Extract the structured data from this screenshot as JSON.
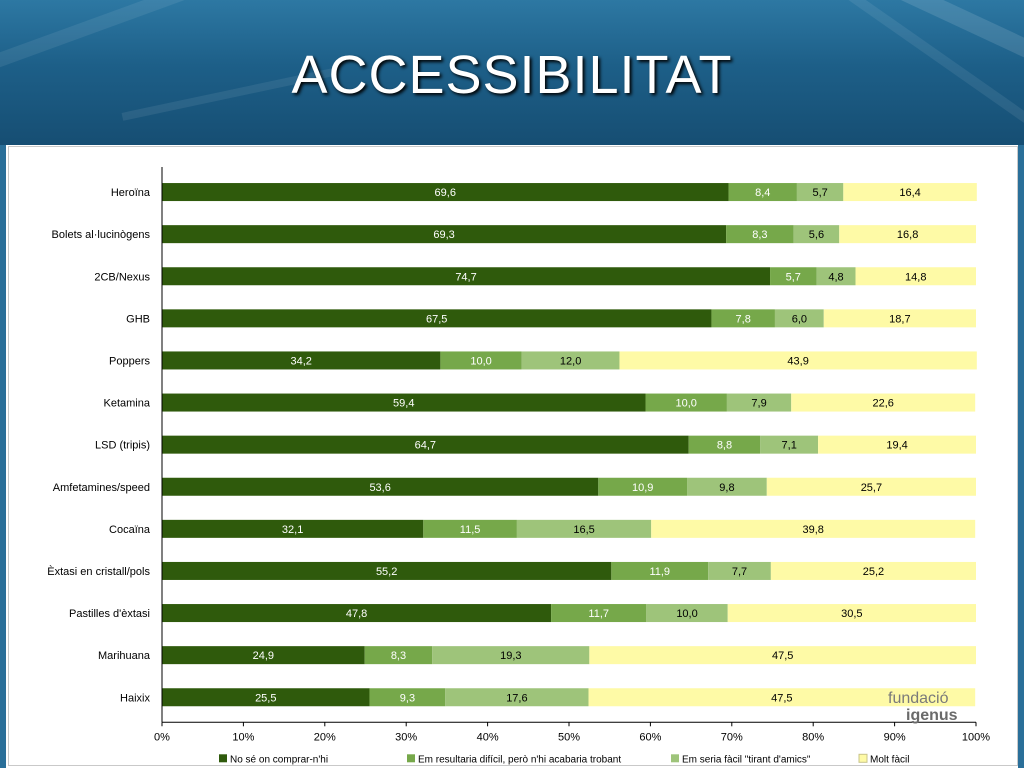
{
  "slide": {
    "title": "ACCESSIBILITAT"
  },
  "logo": {
    "line1": "fundació",
    "line2": "igenus"
  },
  "colors": {
    "banner": "#1d5f88",
    "series": [
      "#2f5a0c",
      "#76a84a",
      "#9ec47a",
      "#fefaa6"
    ]
  },
  "chart_data": {
    "type": "bar",
    "orientation": "horizontal",
    "stacked": true,
    "categories": [
      "Heroïna",
      "Bolets al·lucinògens",
      "2CB/Nexus",
      "GHB",
      "Poppers",
      "Ketamina",
      "LSD (tripis)",
      "Amfetamines/speed",
      "Cocaïna",
      "Èxtasi en cristall/pols",
      "Pastilles d'èxtasi",
      "Marihuana",
      "Haixix"
    ],
    "series": [
      {
        "name": "No sé on comprar-n'hi",
        "values": [
          69.6,
          69.3,
          74.7,
          67.5,
          34.2,
          59.4,
          64.7,
          53.6,
          32.1,
          55.2,
          47.8,
          24.9,
          25.5
        ]
      },
      {
        "name": "Em resultaria difícil, però n'hi acabaria trobant",
        "values": [
          8.4,
          8.3,
          5.7,
          7.8,
          10.0,
          10.0,
          8.8,
          10.9,
          11.5,
          11.9,
          11.7,
          8.3,
          9.3
        ]
      },
      {
        "name": "Em seria fàcil \"tirant d'amics\"",
        "values": [
          5.7,
          5.6,
          4.8,
          6.0,
          12.0,
          7.9,
          7.1,
          9.8,
          16.5,
          7.7,
          10.0,
          19.3,
          17.6
        ]
      },
      {
        "name": "Molt fàcil",
        "values": [
          16.4,
          16.8,
          14.8,
          18.7,
          43.9,
          22.6,
          19.4,
          25.7,
          39.8,
          25.2,
          30.5,
          47.5,
          47.5
        ]
      }
    ],
    "value_labels": [
      [
        "69,6",
        "8,4",
        "5,7",
        "16,4"
      ],
      [
        "69,3",
        "8,3",
        "5,6",
        "16,8"
      ],
      [
        "74,7",
        "5,7",
        "4,8",
        "14,8"
      ],
      [
        "67,5",
        "7,8",
        "6,0",
        "18,7"
      ],
      [
        "34,2",
        "10,0",
        "12,0",
        "43,9"
      ],
      [
        "59,4",
        "10,0",
        "7,9",
        "22,6"
      ],
      [
        "64,7",
        "8,8",
        "7,1",
        "19,4"
      ],
      [
        "53,6",
        "10,9",
        "9,8",
        "25,7"
      ],
      [
        "32,1",
        "11,5",
        "16,5",
        "39,8"
      ],
      [
        "55,2",
        "11,9",
        "7,7",
        "25,2"
      ],
      [
        "47,8",
        "11,7",
        "10,0",
        "30,5"
      ],
      [
        "24,9",
        "8,3",
        "19,3",
        "47,5"
      ],
      [
        "25,5",
        "9,3",
        "17,6",
        "47,5"
      ]
    ],
    "xlim": [
      0,
      100
    ],
    "x_ticks": [
      "0%",
      "10%",
      "20%",
      "30%",
      "40%",
      "50%",
      "60%",
      "70%",
      "80%",
      "90%",
      "100%"
    ],
    "legend_position": "bottom",
    "grid": false
  }
}
